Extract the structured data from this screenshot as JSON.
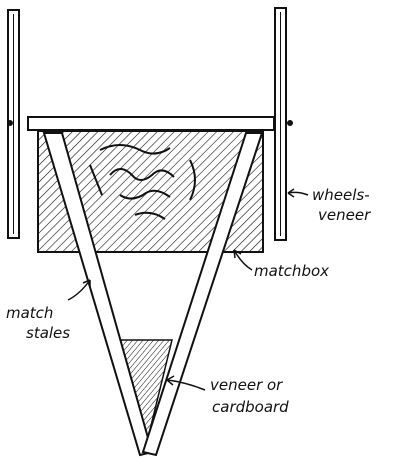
{
  "labels": {
    "wheels_line1": "wheels-",
    "wheels_line2": "veneer",
    "matchbox": "matchbox",
    "match_line1": "match",
    "match_line2": "stales",
    "veneer_line1": "veneer or",
    "veneer_line2": "cardboard"
  },
  "colors": {
    "ink": "#111111",
    "paper": "#ffffff"
  }
}
